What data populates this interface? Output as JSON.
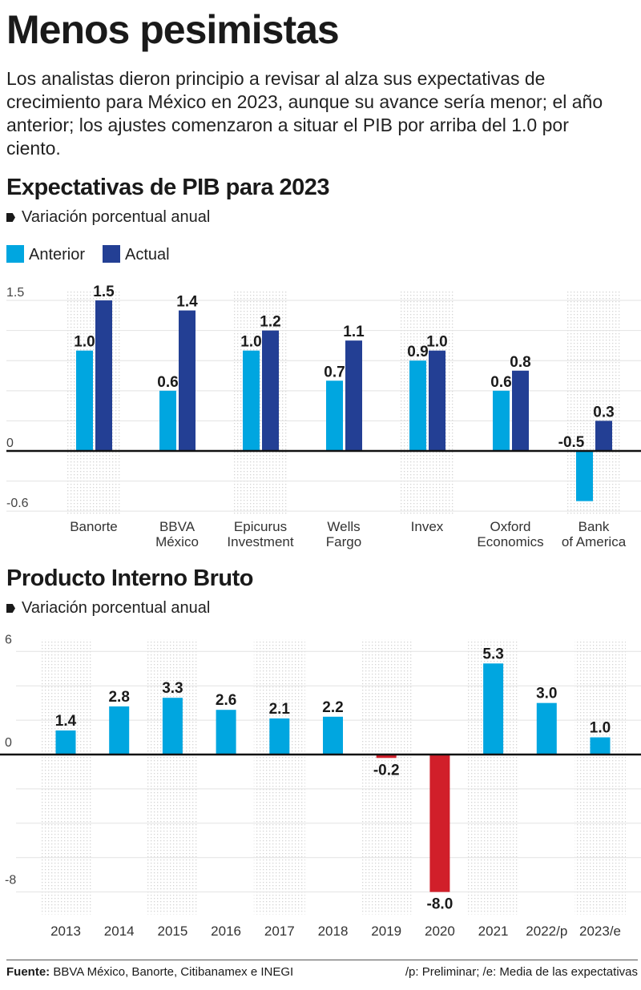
{
  "title": "Menos pesimistas",
  "subtitle": "Los analistas dieron principio a revisar al alza sus expectativas de crecimiento para México en 2023, aunque su avance sería menor; el año anterior; los ajustes comenzaron a situar el PIB por arriba del 1.0 por ciento.",
  "colors": {
    "anterior": "#00a6e0",
    "actual": "#233f94",
    "negative": "#d11f2a"
  },
  "chart_data": [
    {
      "type": "bar",
      "title": "Expectativas de PIB para 2023",
      "unit_label": "Variación porcentual anual",
      "categories": [
        [
          "Banorte"
        ],
        [
          "BBVA",
          "México"
        ],
        [
          "Epicurus",
          "Investment"
        ],
        [
          "Wells",
          "Fargo"
        ],
        [
          "Invex"
        ],
        [
          "Oxford",
          "Economics"
        ],
        [
          "Bank",
          "of America"
        ]
      ],
      "series": [
        {
          "name": "Anterior",
          "values": [
            1.0,
            0.6,
            1.0,
            0.7,
            0.9,
            0.6,
            -0.5
          ],
          "labels": [
            "1.0",
            "0.6",
            "1.0",
            "0.7",
            "0.9",
            "0.6",
            "-0.5"
          ]
        },
        {
          "name": "Actual",
          "values": [
            1.5,
            1.4,
            1.2,
            1.1,
            1.0,
            0.8,
            0.3
          ],
          "labels": [
            "1.5",
            "1.4",
            "1.2",
            "1.1",
            "1.0",
            "0.8",
            "0.3"
          ]
        }
      ],
      "ylim": [
        -0.6,
        1.5
      ],
      "yticks": [
        "1.5",
        "0",
        "-0.6"
      ],
      "ytick_values": [
        1.5,
        0,
        -0.6
      ],
      "grid": true,
      "legend": "top-left"
    },
    {
      "type": "bar",
      "title": "Producto Interno Bruto",
      "unit_label": "Variación porcentual anual",
      "categories": [
        "2013",
        "2014",
        "2015",
        "2016",
        "2017",
        "2018",
        "2019",
        "2020",
        "2021",
        "2022/p",
        "2023/e"
      ],
      "values": [
        1.4,
        2.8,
        3.3,
        2.6,
        2.1,
        2.2,
        -0.2,
        -8.0,
        5.3,
        3.0,
        1.0
      ],
      "labels": [
        "1.4",
        "2.8",
        "3.3",
        "2.6",
        "2.1",
        "2.2",
        "-0.2",
        "-8.0",
        "5.3",
        "3.0",
        "1.0"
      ],
      "ylim": [
        -8,
        6
      ],
      "yticks": [
        "6",
        "0",
        "-8"
      ],
      "ytick_values": [
        6,
        0,
        -8
      ],
      "grid": true
    }
  ],
  "footer": {
    "source_label": "Fuente:",
    "source_text": " BBVA México, Banorte, Citibanamex e INEGI",
    "notes": "/p: Preliminar; /e: Media de las expectativas"
  }
}
